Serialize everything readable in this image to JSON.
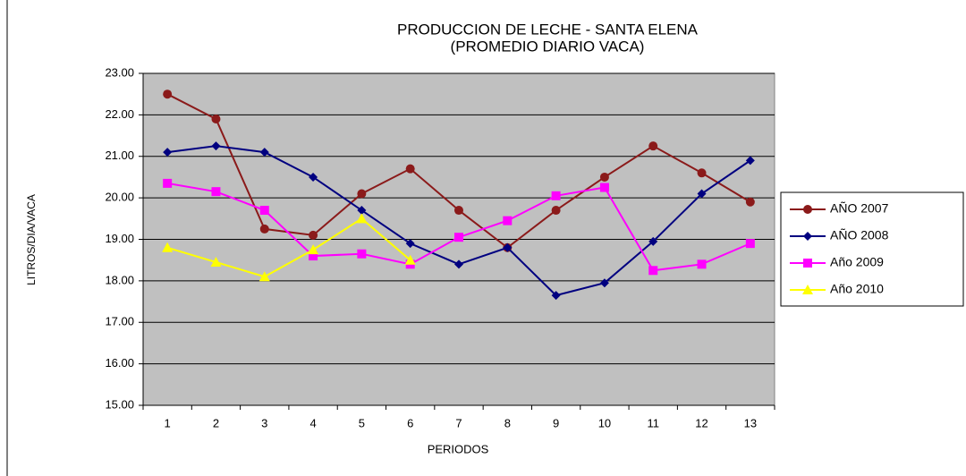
{
  "chart_data": {
    "type": "line",
    "title": [
      "PRODUCCION DE LECHE - SANTA ELENA",
      "(PROMEDIO DIARIO VACA)"
    ],
    "xlabel": "PERIODOS",
    "ylabel": "LITROS/DIA/VACA",
    "categories": [
      "1",
      "2",
      "3",
      "4",
      "5",
      "6",
      "7",
      "8",
      "9",
      "10",
      "11",
      "12",
      "13"
    ],
    "ylim": [
      15,
      23
    ],
    "yticks": [
      {
        "value": 15,
        "label": "15.00"
      },
      {
        "value": 16,
        "label": "16.00"
      },
      {
        "value": 17,
        "label": "17.00"
      },
      {
        "value": 18,
        "label": "18.00"
      },
      {
        "value": 19,
        "label": "19.00"
      },
      {
        "value": 20,
        "label": "20.00"
      },
      {
        "value": 21,
        "label": "21.00"
      },
      {
        "value": 22,
        "label": "22.00"
      },
      {
        "value": 23,
        "label": "23.00"
      }
    ],
    "grid": true,
    "legend": "right",
    "series": [
      {
        "name": "AÑO 2007",
        "color": "#8B1A1A",
        "marker": "circle",
        "values": [
          22.5,
          21.9,
          19.25,
          19.1,
          20.1,
          20.7,
          19.7,
          18.8,
          19.7,
          20.5,
          21.25,
          20.6,
          19.9
        ]
      },
      {
        "name": "AÑO 2008",
        "color": "#000080",
        "marker": "diamond",
        "values": [
          21.1,
          21.25,
          21.1,
          20.5,
          19.7,
          18.9,
          18.4,
          18.8,
          17.65,
          17.95,
          18.95,
          20.1,
          20.9
        ]
      },
      {
        "name": "Año 2009",
        "color": "#FF00FF",
        "marker": "square",
        "values": [
          20.35,
          20.15,
          19.7,
          18.6,
          18.65,
          18.4,
          19.05,
          19.45,
          20.05,
          20.25,
          18.25,
          18.4,
          18.9
        ]
      },
      {
        "name": "Año 2010",
        "color": "#FFFF00",
        "marker": "triangle",
        "values": [
          18.8,
          18.45,
          18.1,
          18.75,
          19.5,
          18.5,
          null,
          null,
          null,
          null,
          null,
          null,
          null
        ]
      }
    ]
  }
}
